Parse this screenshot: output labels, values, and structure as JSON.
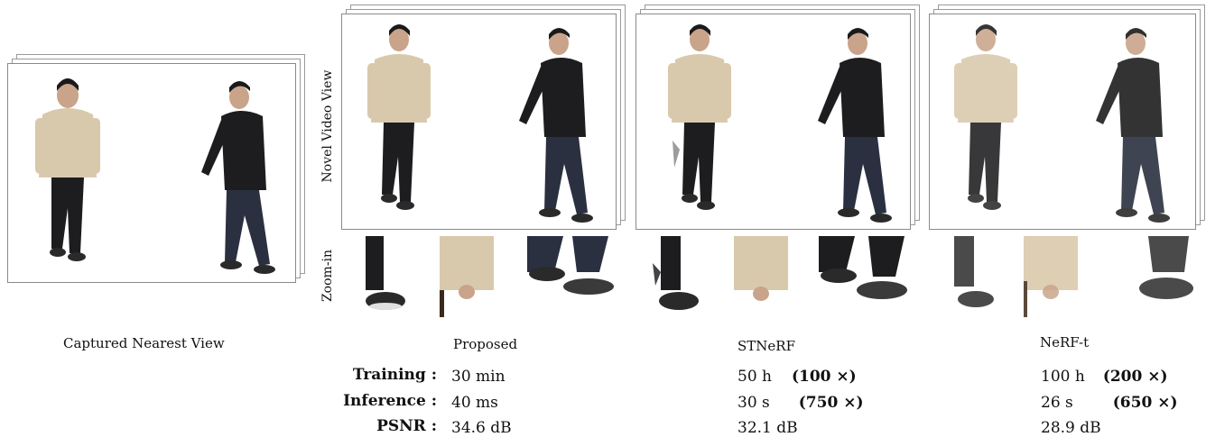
{
  "labels": {
    "novel_view": "Novel Video View",
    "zoom_in": "Zoom-in"
  },
  "captions": {
    "captured": "Captured Nearest View",
    "proposed": "Proposed",
    "stnerf": "STNeRF",
    "nerft": "NeRF-t"
  },
  "metrics": {
    "rows": [
      "Training :",
      "Inference :",
      "PSNR :"
    ],
    "proposed": [
      "30 min",
      "40 ms",
      "34.6 dB"
    ],
    "stnerf": [
      "50 h",
      "30 s",
      "32.1 dB"
    ],
    "stnerf_factor": [
      "(100 ×)",
      "(750 ×)",
      ""
    ],
    "nerft": [
      "100 h",
      "26 s",
      "28.9 dB"
    ],
    "nerft_factor": [
      "(200 ×)",
      "(650 ×)",
      ""
    ]
  },
  "colors": {
    "hoodie_beige": "#d9c9ac",
    "black_clothes": "#1d1d1f",
    "skin": "#c9a48a",
    "hair": "#1a1a1a"
  }
}
